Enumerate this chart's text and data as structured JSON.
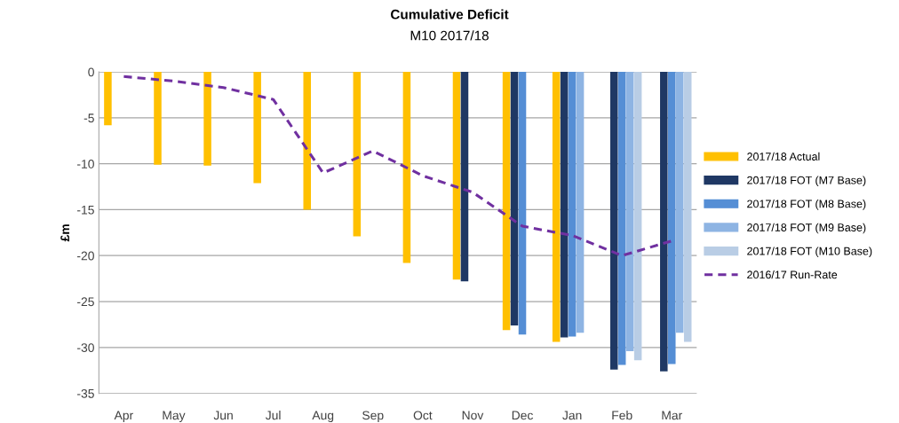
{
  "chart_data": {
    "type": "bar",
    "title": "Cumulative Deficit",
    "subtitle": "M10 2017/18",
    "ylabel": "£m",
    "categories": [
      "Apr",
      "May",
      "Jun",
      "Jul",
      "Aug",
      "Sep",
      "Oct",
      "Nov",
      "Dec",
      "Jan",
      "Feb",
      "Mar"
    ],
    "series": [
      {
        "name": "2017/18 Actual",
        "color": "#ffc000",
        "values": [
          -5.8,
          -10.1,
          -10.2,
          -12.1,
          -15.0,
          -17.9,
          -20.8,
          -22.6,
          -28.1,
          -29.4,
          null,
          null
        ]
      },
      {
        "name": "2017/18 FOT (M7 Base)",
        "color": "#1f3864",
        "values": [
          null,
          null,
          null,
          null,
          null,
          null,
          null,
          -22.8,
          -27.6,
          -28.9,
          -32.4,
          -32.6
        ]
      },
      {
        "name": "2017/18 FOT (M8 Base)",
        "color": "#558ed5",
        "values": [
          null,
          null,
          null,
          null,
          null,
          null,
          null,
          null,
          -28.6,
          -28.8,
          -31.9,
          -31.8
        ]
      },
      {
        "name": "2017/18 FOT (M9 Base)",
        "color": "#8eb4e3",
        "values": [
          null,
          null,
          null,
          null,
          null,
          null,
          null,
          null,
          null,
          -28.4,
          -30.4,
          -28.4
        ]
      },
      {
        "name": "2017/18 FOT (M10 Base)",
        "color": "#b9cde5",
        "values": [
          null,
          null,
          null,
          null,
          null,
          null,
          null,
          null,
          null,
          null,
          -31.4,
          -29.4
        ]
      },
      {
        "name": "2016/17 Run-Rate",
        "type": "line",
        "color": "#7030a0",
        "line_style": "dashed",
        "values": [
          -0.5,
          -1.0,
          -1.7,
          -3.0,
          -11.0,
          -8.6,
          -11.3,
          -13.1,
          -16.8,
          -17.8,
          -20.0,
          -18.4
        ]
      }
    ],
    "ylim": [
      -35,
      0
    ],
    "yticks": [
      -35,
      -30,
      -25,
      -20,
      -15,
      -10,
      -5,
      0
    ],
    "grid": "y",
    "legend": "right"
  }
}
